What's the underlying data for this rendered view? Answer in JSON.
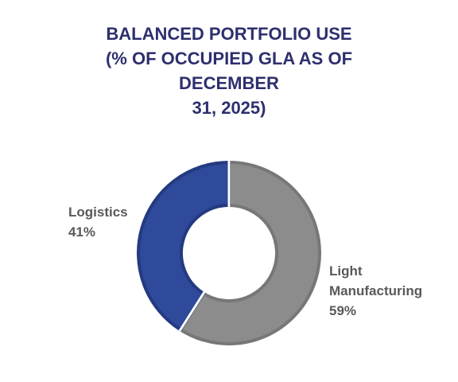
{
  "chart_data": {
    "type": "pie",
    "variant": "donut",
    "title_lines": [
      "BALANCED PORTFOLIO USE",
      "(% OF OCCUPIED GLA AS OF",
      "DECEMBER",
      "31, 2025)"
    ],
    "categories": [
      "Logistics",
      "Light Manufacturing"
    ],
    "values": [
      41,
      59
    ],
    "colors": [
      "#2f4a9a",
      "#8c8c8c"
    ],
    "data_labels": [
      {
        "lines": [
          "Logistics",
          "41%"
        ]
      },
      {
        "lines": [
          "Light",
          "Manufacturing",
          "59%"
        ]
      }
    ],
    "legend": "none"
  }
}
